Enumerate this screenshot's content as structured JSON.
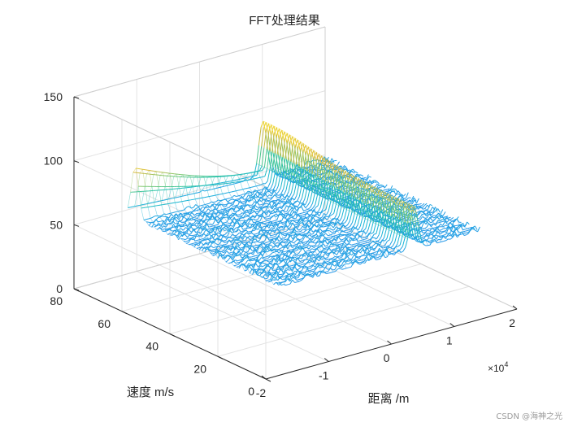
{
  "figure": {
    "title": "FFT处理结果",
    "watermark": "CSDN @海神之光"
  },
  "chart_data": {
    "type": "surface",
    "title": "FFT处理结果",
    "xlabel": "距离 /m",
    "ylabel": "速度 m/s",
    "zlabel": "",
    "x_exponent_label": "×10",
    "x_exponent_power": "4",
    "xlim": [
      -20000,
      20000
    ],
    "ylim": [
      0,
      80
    ],
    "zlim": [
      0,
      150
    ],
    "x_ticks": [
      {
        "value": -20000,
        "label": "-2"
      },
      {
        "value": -10000,
        "label": "-1"
      },
      {
        "value": 0,
        "label": "0"
      },
      {
        "value": 10000,
        "label": "1"
      },
      {
        "value": 20000,
        "label": "2"
      }
    ],
    "y_ticks": [
      {
        "value": 0,
        "label": "0"
      },
      {
        "value": 20,
        "label": "20"
      },
      {
        "value": 40,
        "label": "40"
      },
      {
        "value": 60,
        "label": "60"
      },
      {
        "value": 80,
        "label": "80"
      }
    ],
    "z_ticks": [
      {
        "value": 0,
        "label": "0"
      },
      {
        "value": 50,
        "label": "50"
      },
      {
        "value": 100,
        "label": "100"
      },
      {
        "value": 150,
        "label": "150"
      }
    ],
    "grid": true,
    "colormap": "parula",
    "colormap_colors": [
      "#3e26a8",
      "#4a55f5",
      "#2f8ef0",
      "#16b4d6",
      "#2ec4a0",
      "#80c86f",
      "#d6b83a",
      "#f9e125"
    ],
    "noise_floor_db": 62,
    "noise_min_db": 40,
    "peak_range_m": 5500,
    "peak_value_db": 107,
    "ridge_velocity_mps": 65,
    "ridge_value_db": 103,
    "speed_data_range": [
      5,
      68
    ],
    "range_data_range": [
      -16000,
      16000
    ]
  }
}
